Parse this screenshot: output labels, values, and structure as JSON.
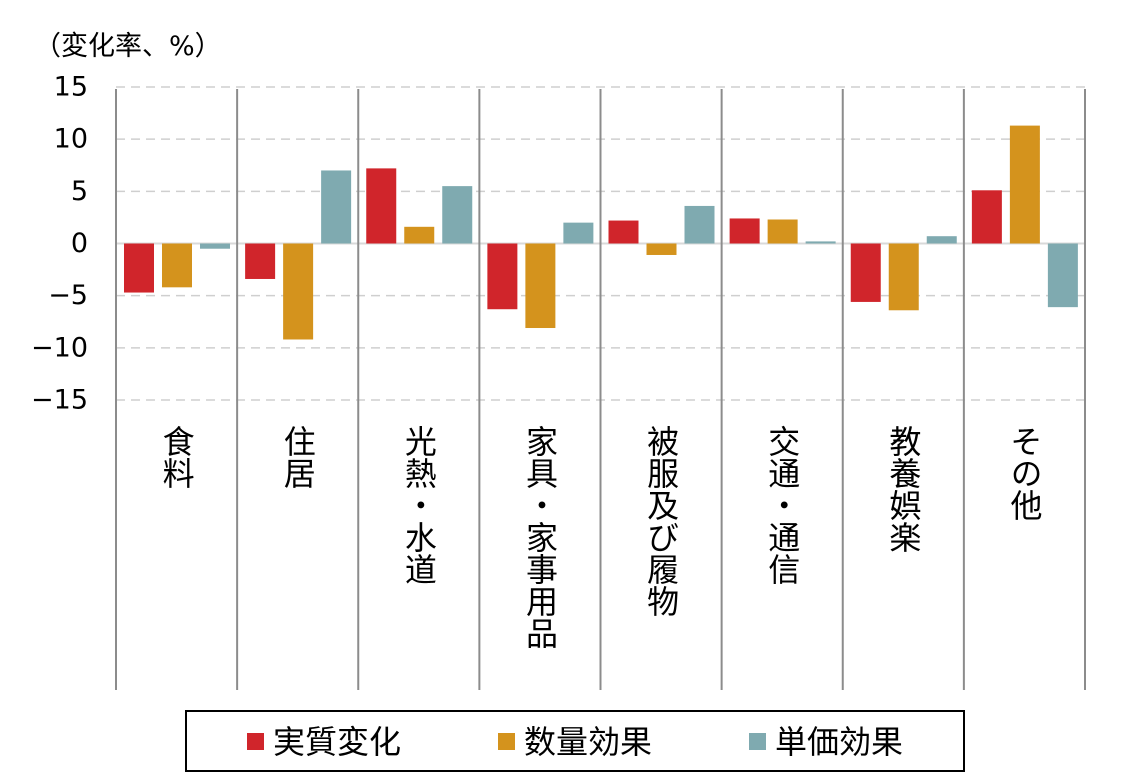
{
  "chart_data": {
    "type": "bar",
    "unit_label": "（変化率、%）",
    "categories": [
      "食料",
      "住居",
      "光熱・水道",
      "家具・家事用品",
      "被服及び履物",
      "交通・通信",
      "教養娯楽",
      "その他"
    ],
    "series": [
      {
        "name": "実質変化",
        "color": "#d0252b",
        "values": [
          -4.7,
          -3.4,
          7.2,
          -6.3,
          2.2,
          2.4,
          -5.6,
          5.1
        ]
      },
      {
        "name": "数量効果",
        "color": "#d4931d",
        "values": [
          -4.2,
          -9.2,
          1.6,
          -8.1,
          -1.1,
          2.3,
          -6.4,
          11.3
        ]
      },
      {
        "name": "単価効果",
        "color": "#7faab0",
        "values": [
          -0.5,
          7.0,
          5.5,
          2.0,
          3.6,
          0.2,
          0.7,
          -6.1
        ]
      }
    ],
    "ylim": [
      -15,
      15
    ],
    "yticks": [
      "15",
      "10",
      "5",
      "0",
      "−5",
      "−10",
      "−15"
    ],
    "ytick_values": [
      15,
      10,
      5,
      0,
      -5,
      -10,
      -15
    ],
    "grid": "dashed-horizontal",
    "legend_position": "bottom"
  }
}
